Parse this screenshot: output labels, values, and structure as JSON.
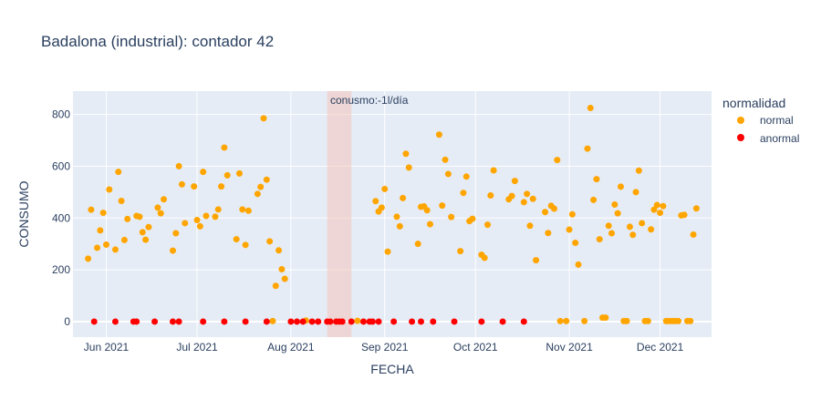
{
  "chart_data": {
    "type": "scatter",
    "title": "Badalona (industrial): contador 42",
    "xlabel": "FECHA",
    "ylabel": "CONSUMO",
    "x_range": [
      "2021-05-21",
      "2021-12-18"
    ],
    "ylim": [
      -60,
      890
    ],
    "x_ticks": [
      {
        "date": "2021-06-01",
        "label": "Jun 2021"
      },
      {
        "date": "2021-07-01",
        "label": "Jul 2021"
      },
      {
        "date": "2021-08-01",
        "label": "Aug 2021"
      },
      {
        "date": "2021-09-01",
        "label": "Sep 2021"
      },
      {
        "date": "2021-10-01",
        "label": "Oct 2021"
      },
      {
        "date": "2021-11-01",
        "label": "Nov 2021"
      },
      {
        "date": "2021-12-01",
        "label": "Dec 2021"
      }
    ],
    "y_ticks": [
      0,
      200,
      400,
      600,
      800
    ],
    "grid": true,
    "legend": {
      "title": "normalidad",
      "placement": "top-right"
    },
    "annotation": {
      "text": "conusmo:-1l/día",
      "x_start": "2021-08-13",
      "x_end": "2021-08-21"
    },
    "colors": {
      "normal": "#FFA500",
      "anormal": "#FF0000",
      "band": "#F4C5B9",
      "plot_bg": "#E5ECF6"
    },
    "series": [
      {
        "name": "normal",
        "color": "#FFA500",
        "points": [
          [
            "2021-05-26",
            243
          ],
          [
            "2021-05-27",
            432
          ],
          [
            "2021-05-29",
            285
          ],
          [
            "2021-05-30",
            352
          ],
          [
            "2021-05-31",
            420
          ],
          [
            "2021-06-01",
            297
          ],
          [
            "2021-06-02",
            510
          ],
          [
            "2021-06-04",
            278
          ],
          [
            "2021-06-05",
            578
          ],
          [
            "2021-06-06",
            466
          ],
          [
            "2021-06-07",
            315
          ],
          [
            "2021-06-08",
            396
          ],
          [
            "2021-06-11",
            408
          ],
          [
            "2021-06-12",
            405
          ],
          [
            "2021-06-13",
            345
          ],
          [
            "2021-06-14",
            316
          ],
          [
            "2021-06-15",
            365
          ],
          [
            "2021-06-18",
            440
          ],
          [
            "2021-06-19",
            418
          ],
          [
            "2021-06-20",
            472
          ],
          [
            "2021-06-23",
            274
          ],
          [
            "2021-06-24",
            341
          ],
          [
            "2021-06-25",
            600
          ],
          [
            "2021-06-26",
            530
          ],
          [
            "2021-06-27",
            380
          ],
          [
            "2021-06-30",
            522
          ],
          [
            "2021-07-01",
            392
          ],
          [
            "2021-07-02",
            368
          ],
          [
            "2021-07-03",
            578
          ],
          [
            "2021-07-04",
            408
          ],
          [
            "2021-07-07",
            405
          ],
          [
            "2021-07-08",
            433
          ],
          [
            "2021-07-09",
            522
          ],
          [
            "2021-07-10",
            672
          ],
          [
            "2021-07-11",
            565
          ],
          [
            "2021-07-14",
            318
          ],
          [
            "2021-07-15",
            572
          ],
          [
            "2021-07-16",
            433
          ],
          [
            "2021-07-17",
            296
          ],
          [
            "2021-07-18",
            428
          ],
          [
            "2021-07-21",
            493
          ],
          [
            "2021-07-22",
            520
          ],
          [
            "2021-07-23",
            785
          ],
          [
            "2021-07-24",
            548
          ],
          [
            "2021-07-25",
            310
          ],
          [
            "2021-07-26",
            2
          ],
          [
            "2021-07-27",
            138
          ],
          [
            "2021-07-28",
            275
          ],
          [
            "2021-07-29",
            202
          ],
          [
            "2021-07-30",
            165
          ],
          [
            "2021-08-06",
            4
          ],
          [
            "2021-08-23",
            3
          ],
          [
            "2021-08-29",
            465
          ],
          [
            "2021-08-30",
            425
          ],
          [
            "2021-08-31",
            440
          ],
          [
            "2021-09-01",
            512
          ],
          [
            "2021-09-02",
            270
          ],
          [
            "2021-09-05",
            405
          ],
          [
            "2021-09-06",
            368
          ],
          [
            "2021-09-07",
            477
          ],
          [
            "2021-09-08",
            648
          ],
          [
            "2021-09-09",
            595
          ],
          [
            "2021-09-12",
            300
          ],
          [
            "2021-09-13",
            443
          ],
          [
            "2021-09-14",
            445
          ],
          [
            "2021-09-15",
            430
          ],
          [
            "2021-09-16",
            376
          ],
          [
            "2021-09-19",
            722
          ],
          [
            "2021-09-20",
            448
          ],
          [
            "2021-09-21",
            625
          ],
          [
            "2021-09-22",
            570
          ],
          [
            "2021-09-23",
            404
          ],
          [
            "2021-09-26",
            272
          ],
          [
            "2021-09-27",
            497
          ],
          [
            "2021-09-28",
            560
          ],
          [
            "2021-09-29",
            388
          ],
          [
            "2021-09-30",
            397
          ],
          [
            "2021-10-03",
            258
          ],
          [
            "2021-10-04",
            246
          ],
          [
            "2021-10-05",
            374
          ],
          [
            "2021-10-06",
            487
          ],
          [
            "2021-10-07",
            584
          ],
          [
            "2021-10-12",
            472
          ],
          [
            "2021-10-13",
            485
          ],
          [
            "2021-10-14",
            543
          ],
          [
            "2021-10-17",
            461
          ],
          [
            "2021-10-18",
            493
          ],
          [
            "2021-10-19",
            370
          ],
          [
            "2021-10-20",
            474
          ],
          [
            "2021-10-21",
            237
          ],
          [
            "2021-10-24",
            423
          ],
          [
            "2021-10-25",
            342
          ],
          [
            "2021-10-26",
            447
          ],
          [
            "2021-10-27",
            436
          ],
          [
            "2021-10-28",
            624
          ],
          [
            "2021-10-29",
            2
          ],
          [
            "2021-10-31",
            2
          ],
          [
            "2021-11-01",
            355
          ],
          [
            "2021-11-02",
            414
          ],
          [
            "2021-11-03",
            304
          ],
          [
            "2021-11-04",
            220
          ],
          [
            "2021-11-06",
            2
          ],
          [
            "2021-11-07",
            668
          ],
          [
            "2021-11-08",
            825
          ],
          [
            "2021-11-09",
            470
          ],
          [
            "2021-11-10",
            550
          ],
          [
            "2021-11-11",
            318
          ],
          [
            "2021-11-12",
            15
          ],
          [
            "2021-11-13",
            15
          ],
          [
            "2021-11-14",
            370
          ],
          [
            "2021-11-15",
            341
          ],
          [
            "2021-11-16",
            452
          ],
          [
            "2021-11-17",
            418
          ],
          [
            "2021-11-18",
            521
          ],
          [
            "2021-11-19",
            2
          ],
          [
            "2021-11-20",
            2
          ],
          [
            "2021-11-21",
            366
          ],
          [
            "2021-11-22",
            335
          ],
          [
            "2021-11-23",
            500
          ],
          [
            "2021-11-24",
            583
          ],
          [
            "2021-11-25",
            380
          ],
          [
            "2021-11-26",
            2
          ],
          [
            "2021-11-27",
            2
          ],
          [
            "2021-11-28",
            356
          ],
          [
            "2021-11-29",
            432
          ],
          [
            "2021-11-30",
            450
          ],
          [
            "2021-12-01",
            420
          ],
          [
            "2021-12-02",
            446
          ],
          [
            "2021-12-03",
            2
          ],
          [
            "2021-12-04",
            2
          ],
          [
            "2021-12-05",
            2
          ],
          [
            "2021-12-06",
            2
          ],
          [
            "2021-12-07",
            2
          ],
          [
            "2021-12-08",
            410
          ],
          [
            "2021-12-09",
            412
          ],
          [
            "2021-12-10",
            2
          ],
          [
            "2021-12-11",
            2
          ],
          [
            "2021-12-12",
            336
          ],
          [
            "2021-12-13",
            437
          ]
        ]
      },
      {
        "name": "anormal",
        "color": "#FF0000",
        "points": [
          [
            "2021-05-28",
            0
          ],
          [
            "2021-06-04",
            0
          ],
          [
            "2021-06-10",
            0
          ],
          [
            "2021-06-11",
            0
          ],
          [
            "2021-06-17",
            0
          ],
          [
            "2021-06-23",
            0
          ],
          [
            "2021-06-25",
            0
          ],
          [
            "2021-07-03",
            0
          ],
          [
            "2021-07-10",
            0
          ],
          [
            "2021-07-17",
            0
          ],
          [
            "2021-07-24",
            0
          ],
          [
            "2021-08-01",
            0
          ],
          [
            "2021-08-03",
            0
          ],
          [
            "2021-08-05",
            0
          ],
          [
            "2021-08-08",
            0
          ],
          [
            "2021-08-10",
            0
          ],
          [
            "2021-08-13",
            0
          ],
          [
            "2021-08-14",
            0
          ],
          [
            "2021-08-16",
            0
          ],
          [
            "2021-08-17",
            0
          ],
          [
            "2021-08-18",
            0
          ],
          [
            "2021-08-21",
            0
          ],
          [
            "2021-08-25",
            0
          ],
          [
            "2021-08-27",
            0
          ],
          [
            "2021-08-28",
            0
          ],
          [
            "2021-08-30",
            0
          ],
          [
            "2021-09-04",
            0
          ],
          [
            "2021-09-10",
            0
          ],
          [
            "2021-09-13",
            0
          ],
          [
            "2021-09-17",
            0
          ],
          [
            "2021-09-24",
            0
          ],
          [
            "2021-10-03",
            0
          ],
          [
            "2021-10-10",
            0
          ],
          [
            "2021-10-17",
            0
          ]
        ]
      }
    ]
  }
}
